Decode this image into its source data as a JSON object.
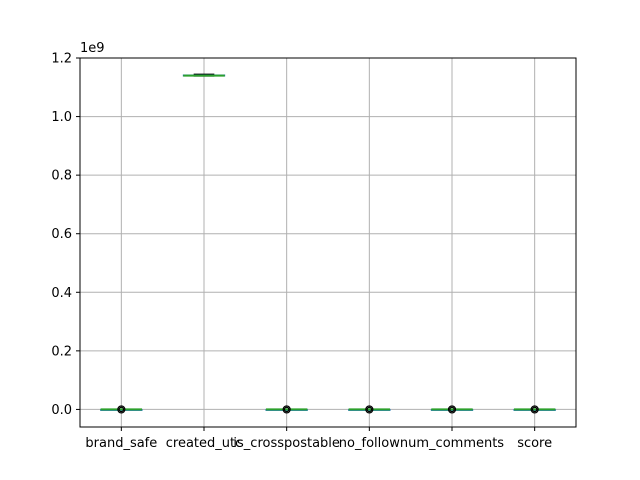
{
  "chart_data": {
    "type": "box",
    "categories": [
      "brand_safe",
      "created_utc",
      "is_crosspostable",
      "no_follow",
      "num_comments",
      "score"
    ],
    "scale_multiplier_label": "1e9",
    "y_ticks": [
      "0.0",
      "0.2",
      "0.4",
      "0.6",
      "0.8",
      "1.0",
      "1.2"
    ],
    "ylim": [
      -0.06,
      1.2
    ],
    "ylim_scale": "1e9",
    "grid": true,
    "series": [
      {
        "category": "brand_safe",
        "min": 0,
        "q1": 0,
        "median": 0,
        "q3": 0,
        "max": 0,
        "outliers": [
          1e-07
        ]
      },
      {
        "category": "created_utc",
        "min": 1.138,
        "q1": 1.139,
        "median": 1.14,
        "q3": 1.142,
        "max": 1.145,
        "outliers": []
      },
      {
        "category": "is_crosspostable",
        "min": 0,
        "q1": 0,
        "median": 0,
        "q3": 0,
        "max": 0,
        "outliers": [
          1e-07
        ]
      },
      {
        "category": "no_follow",
        "min": 0,
        "q1": 0,
        "median": 0,
        "q3": 0,
        "max": 0,
        "outliers": [
          1e-07
        ]
      },
      {
        "category": "num_comments",
        "min": 0,
        "q1": 0,
        "median": 0,
        "q3": 0,
        "max": 0,
        "outliers": [
          1e-07
        ]
      },
      {
        "category": "score",
        "min": 0,
        "q1": 0,
        "median": 0,
        "q3": 0,
        "max": 0,
        "outliers": [
          1e-07
        ]
      }
    ],
    "colors": {
      "box": "#1f77b4",
      "median": "#2ca02c",
      "whisker": "#000000",
      "grid": "#b0b0b0",
      "axes": "#000000"
    }
  }
}
